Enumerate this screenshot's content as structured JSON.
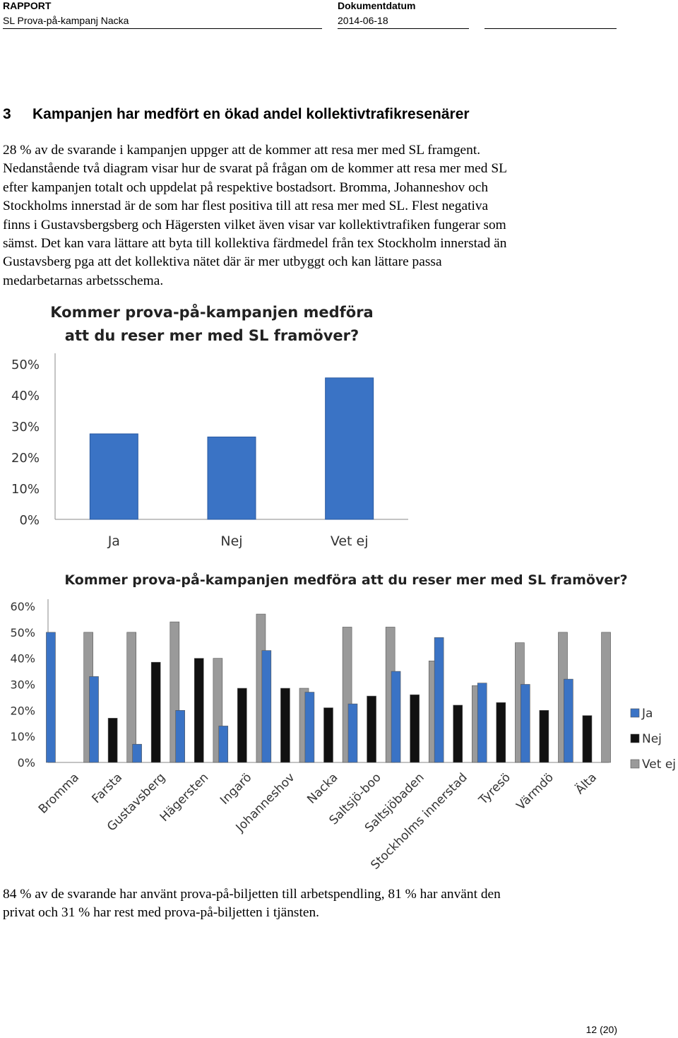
{
  "header": {
    "report_label": "RAPPORT",
    "report_title": "SL Prova-på-kampanj Nacka",
    "date_label": "Dokumentdatum",
    "date_value": "2014-06-18"
  },
  "section": {
    "number": "3",
    "title": "Kampanjen har medfört en ökad andel kollektivtrafikresenärer"
  },
  "intro_lines": [
    "28 % av de svarande i kampanjen uppger att de kommer att resa mer med SL framgent.",
    "Nedanstående två diagram visar hur de svarat på frågan om de kommer att resa mer med SL",
    "efter kampanjen totalt och uppdelat på respektive bostadsort. Bromma, Johanneshov och",
    "Stockholms innerstad är de som har flest positiva till att resa mer med SL.  Flest negativa",
    "finns i Gustavsbergsberg och Hägersten vilket även visar var kollektivtrafiken fungerar som",
    "sämst. Det kan vara lättare att byta till kollektiva färdmedel från tex Stockholm innerstad än",
    "Gustavsberg pga att det kollektiva nätet där är mer utbyggt och kan lättare passa",
    "medarbetarnas arbetsschema."
  ],
  "chart_data": [
    {
      "type": "bar",
      "title": "Kommer prova-på-kampanjen  medföra att du reser mer med SL framöver?",
      "title_lines": [
        "Kommer prova-på-kampanjen  medföra",
        "att du reser mer med SL framöver?"
      ],
      "categories": [
        "Ja",
        "Nej",
        "Vet ej"
      ],
      "values": [
        27.5,
        26.5,
        45.5
      ],
      "ylim": [
        0,
        50
      ],
      "yticks": [
        "0%",
        "10%",
        "20%",
        "30%",
        "40%",
        "50%"
      ],
      "color": "#3a73c5"
    },
    {
      "type": "bar",
      "title": "Kommer prova-på-kampanjen  medföra  att du reser mer med SL framöver?",
      "categories": [
        "Bromma",
        "Farsta",
        "Gustavsberg",
        "Hägersten",
        "Ingarö",
        "Johanneshov",
        "Nacka",
        "Saltsjö-boo",
        "Saltsjöbaden",
        "Stockholms innerstad",
        "Tyresö",
        "Värmdö",
        "Älta"
      ],
      "series": [
        {
          "name": "Ja",
          "color": "#3a73c5",
          "values": [
            50,
            33,
            7,
            20,
            14,
            43,
            27,
            22.5,
            35,
            48,
            30.5,
            30,
            32
          ]
        },
        {
          "name": "Nej",
          "color": "#111111",
          "values": [
            0,
            17,
            38.5,
            40,
            28.5,
            28.5,
            21,
            25.5,
            26,
            22,
            23,
            20,
            18
          ]
        },
        {
          "name": "Vet ej",
          "color": "#9a9a9a",
          "values": [
            50,
            50,
            54,
            40,
            57,
            28.5,
            52,
            52,
            39,
            29.5,
            46,
            50,
            50
          ]
        }
      ],
      "ylim": [
        0,
        60
      ],
      "yticks": [
        "0%",
        "10%",
        "20%",
        "30%",
        "40%",
        "50%",
        "60%"
      ],
      "legend": "right"
    }
  ],
  "closing_lines": [
    "84 % av de svarande har använt prova-på-biljetten till arbetspendling, 81 % har använt den",
    "privat och 31 % har rest med prova-på-biljetten i tjänsten."
  ],
  "page_number": "12 (20)"
}
